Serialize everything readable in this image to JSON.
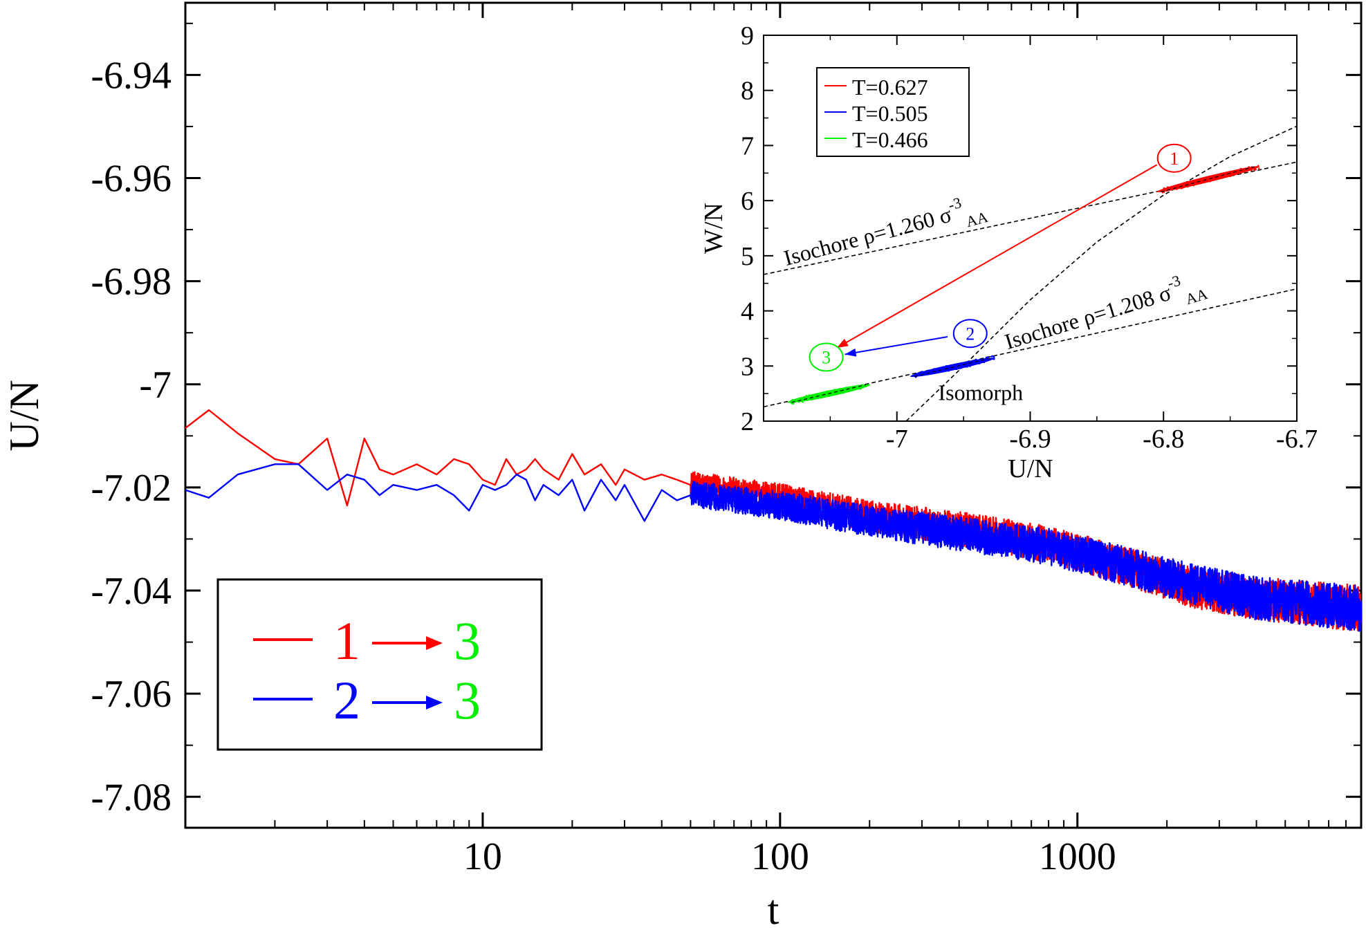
{
  "chart_data": [
    {
      "type": "line",
      "scale_x": "log",
      "xlabel": "t",
      "ylabel": "U/N",
      "xlim": [
        1,
        9000
      ],
      "ylim": [
        -7.086,
        -6.926
      ],
      "xticks": [
        10,
        100,
        1000
      ],
      "xtick_labels": [
        "10",
        "100",
        "1000"
      ],
      "yticks": [
        -6.94,
        -6.96,
        -6.98,
        -7.0,
        -7.02,
        -7.04,
        -7.06,
        -7.08
      ],
      "ytick_labels": [
        "-6.94",
        "-6.96",
        "-6.98",
        "-7",
        "-7.02",
        "-7.04",
        "-7.06",
        "-7.08"
      ],
      "series": [
        {
          "name": "1 → 3",
          "color": "#ff0000",
          "x": [
            1,
            1.2,
            1.5,
            2,
            2.4,
            3,
            3.5,
            4,
            4.5,
            5,
            6,
            7,
            8,
            9,
            10,
            11,
            12,
            13,
            14,
            15,
            16,
            18,
            20,
            22,
            25,
            28,
            30,
            35,
            40,
            45,
            50
          ],
          "y": [
            -7.0085,
            -7.005,
            -7.0095,
            -7.0145,
            -7.0155,
            -7.0105,
            -7.0235,
            -7.0105,
            -7.0165,
            -7.0175,
            -7.0155,
            -7.0175,
            -7.0145,
            -7.0155,
            -7.0185,
            -7.0195,
            -7.0145,
            -7.0175,
            -7.0165,
            -7.0145,
            -7.0165,
            -7.0185,
            -7.0135,
            -7.0175,
            -7.0155,
            -7.0195,
            -7.0165,
            -7.0185,
            -7.0175,
            -7.0185,
            -7.0195
          ],
          "trend": {
            "x": [
              40,
              100,
              200,
              400,
              800,
              1500,
              2500,
              4000,
              6000,
              9000
            ],
            "y": [
              -7.0185,
              -7.022,
              -7.0255,
              -7.028,
              -7.031,
              -7.0355,
              -7.0395,
              -7.0415,
              -7.0425,
              -7.0435
            ],
            "noise_amplitude": 0.0045
          }
        },
        {
          "name": "2 → 3",
          "color": "#0000ff",
          "x": [
            1,
            1.2,
            1.5,
            2,
            2.4,
            3,
            3.5,
            4,
            4.5,
            5,
            6,
            7,
            8,
            9,
            10,
            11,
            12,
            13,
            14,
            15,
            16,
            18,
            20,
            22,
            25,
            28,
            30,
            35,
            40,
            45,
            50
          ],
          "y": [
            -7.0205,
            -7.022,
            -7.0175,
            -7.0155,
            -7.0155,
            -7.0205,
            -7.0175,
            -7.0185,
            -7.0215,
            -7.0195,
            -7.0205,
            -7.0195,
            -7.0215,
            -7.0245,
            -7.0195,
            -7.0205,
            -7.0195,
            -7.0175,
            -7.0185,
            -7.0225,
            -7.0195,
            -7.0215,
            -7.0185,
            -7.0245,
            -7.0185,
            -7.0225,
            -7.0195,
            -7.0265,
            -7.0205,
            -7.0225,
            -7.0215
          ],
          "trend": {
            "x": [
              40,
              100,
              200,
              400,
              800,
              1500,
              2500,
              4000,
              6000,
              9000
            ],
            "y": [
              -7.0205,
              -7.0235,
              -7.0265,
              -7.029,
              -7.0315,
              -7.0355,
              -7.039,
              -7.0415,
              -7.0425,
              -7.0435
            ],
            "noise_amplitude": 0.0045
          }
        }
      ],
      "legend": {
        "position": "bottom-left",
        "entries": [
          {
            "color": "#ff0000",
            "from": "1",
            "to": "3",
            "from_color": "#ff0000",
            "to_color": "#00ee00"
          },
          {
            "color": "#0000ff",
            "from": "2",
            "to": "3",
            "from_color": "#0000ff",
            "to_color": "#00ee00"
          }
        ]
      }
    },
    {
      "type": "scatter",
      "inset": true,
      "xlabel": "U/N",
      "ylabel": "W/N",
      "xlim": [
        -7.1,
        -6.7
      ],
      "ylim": [
        2,
        9
      ],
      "xticks": [
        -7.0,
        -6.9,
        -6.8,
        -6.7
      ],
      "xtick_labels": [
        "-7",
        "-6.9",
        "-6.8",
        "-6.7"
      ],
      "yticks": [
        2,
        3,
        4,
        5,
        6,
        7,
        8,
        9
      ],
      "ytick_labels": [
        "2",
        "3",
        "4",
        "5",
        "6",
        "7",
        "8",
        "9"
      ],
      "clusters": [
        {
          "label": "T=0.627",
          "color": "#ff0000",
          "x_range": [
            -6.805,
            -6.728
          ],
          "y_range": [
            6.16,
            6.62
          ]
        },
        {
          "label": "T=0.505",
          "color": "#0000ff",
          "x_range": [
            -6.99,
            -6.927
          ],
          "y_range": [
            2.81,
            3.14
          ]
        },
        {
          "label": "T=0.466",
          "color": "#00ee00",
          "x_range": [
            -7.082,
            -7.02
          ],
          "y_range": [
            2.34,
            2.66
          ]
        }
      ],
      "lines": [
        {
          "name": "Isochore ρ=1.260 σ-3AA",
          "points": [
            [
              -7.1,
              4.66
            ],
            [
              -6.7,
              6.7
            ]
          ]
        },
        {
          "name": "Isochore ρ=1.208 σ-3AA",
          "points": [
            [
              -7.1,
              2.26
            ],
            [
              -6.7,
              4.4
            ]
          ]
        },
        {
          "name": "Isomorph",
          "points": [
            [
              -6.993,
              2.0
            ],
            [
              -6.95,
              3.0
            ],
            [
              -6.9,
              4.2
            ],
            [
              -6.85,
              5.25
            ],
            [
              -6.8,
              6.1
            ],
            [
              -6.75,
              6.8
            ],
            [
              -6.7,
              7.35
            ]
          ]
        }
      ],
      "state_markers": [
        {
          "label": "1",
          "color": "#ff0000",
          "x": -6.792,
          "y": 6.77
        },
        {
          "label": "2",
          "color": "#0000ff",
          "x": -6.945,
          "y": 3.59
        },
        {
          "label": "3",
          "color": "#00ee00",
          "x": -7.053,
          "y": 3.16
        }
      ],
      "arrows": [
        {
          "color": "#ff0000",
          "from": [
            -6.805,
            6.65
          ],
          "to": [
            -7.045,
            3.33
          ]
        },
        {
          "color": "#0000ff",
          "from": [
            -6.962,
            3.53
          ],
          "to": [
            -7.039,
            3.21
          ]
        }
      ],
      "annotations": [
        {
          "text_main": "Isochore ρ=1.260 σ",
          "sup": "-3",
          "sub": "AA",
          "x": -7.083,
          "y": 4.82,
          "angle": -15
        },
        {
          "text_main": "Isochore ρ=1.208 σ",
          "sup": "-3",
          "sub": "AA",
          "x": -6.917,
          "y": 3.3,
          "angle": -17
        },
        {
          "text_main": "Isomorph",
          "sup": "",
          "sub": "",
          "x": -6.969,
          "y": 2.38,
          "angle": 0
        }
      ],
      "legend": {
        "position": "top-left",
        "entries": [
          "T=0.627",
          "T=0.505",
          "T=0.466"
        ]
      }
    }
  ]
}
